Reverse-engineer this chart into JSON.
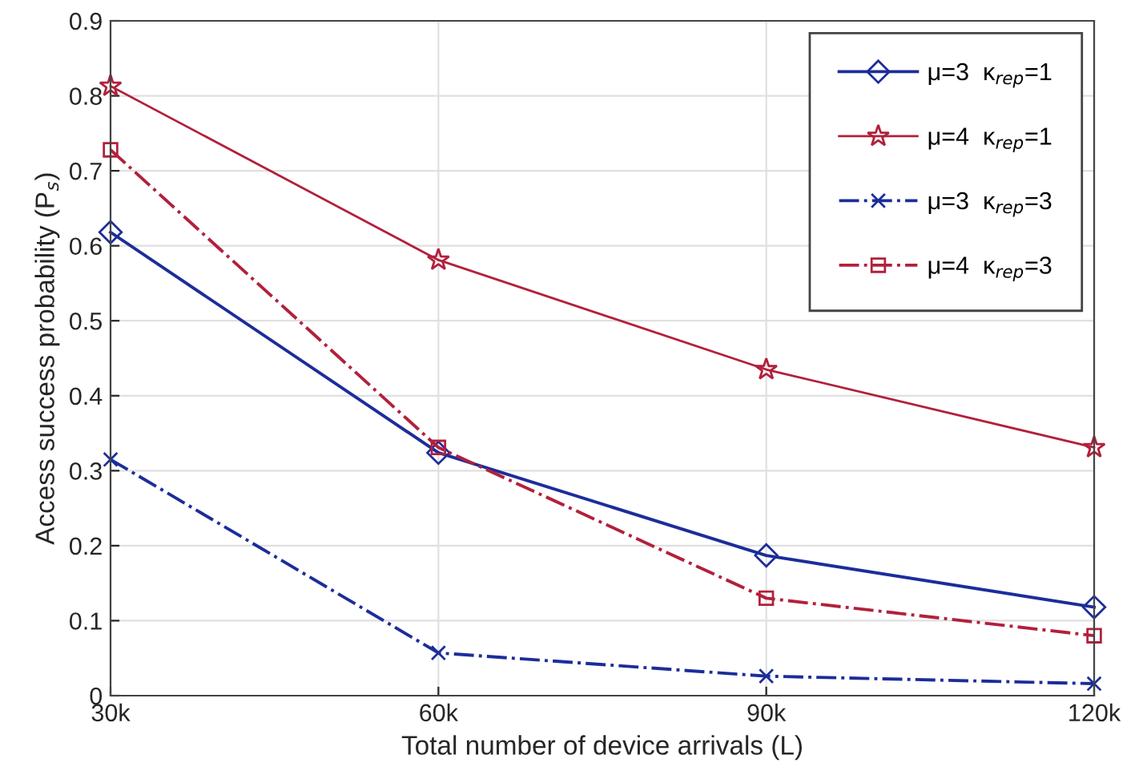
{
  "chart_data": {
    "type": "line",
    "xlabel": "Total number of device arrivals (L)",
    "ylabel": "Access success probability (P$_{s}$)",
    "x": [
      30000,
      60000,
      90000,
      120000
    ],
    "xlim": [
      30000,
      120000
    ],
    "xticks": [
      {
        "value": 30000,
        "label": "30k"
      },
      {
        "value": 60000,
        "label": "60k"
      },
      {
        "value": 90000,
        "label": "90k"
      },
      {
        "value": 120000,
        "label": "120k"
      }
    ],
    "ylim": [
      0,
      0.9
    ],
    "yticks": [
      0,
      0.1,
      0.2,
      0.3,
      0.4,
      0.5,
      0.6,
      0.7,
      0.8,
      0.9
    ],
    "grid": true,
    "legend": "top right",
    "series": [
      {
        "name": "μ=3  κ$_{rep}$=1",
        "color": "#1c2d9a",
        "marker": "diamond",
        "line_style": "solid",
        "values": [
          0.618,
          0.324,
          0.187,
          0.118
        ]
      },
      {
        "name": "μ=4  κ$_{rep}$=1",
        "color": "#b2203c",
        "marker": "star",
        "line_style": "solid",
        "values": [
          0.813,
          0.581,
          0.435,
          0.331
        ]
      },
      {
        "name": "μ=3  κ$_{rep}$=3",
        "color": "#1c2d9a",
        "marker": "cross",
        "line_style": "dashdot",
        "values": [
          0.315,
          0.057,
          0.026,
          0.016
        ]
      },
      {
        "name": "μ=4  κ$_{rep}$=3",
        "color": "#b2203c",
        "marker": "square",
        "line_style": "dashdot",
        "values": [
          0.728,
          0.331,
          0.13,
          0.08
        ]
      }
    ]
  }
}
